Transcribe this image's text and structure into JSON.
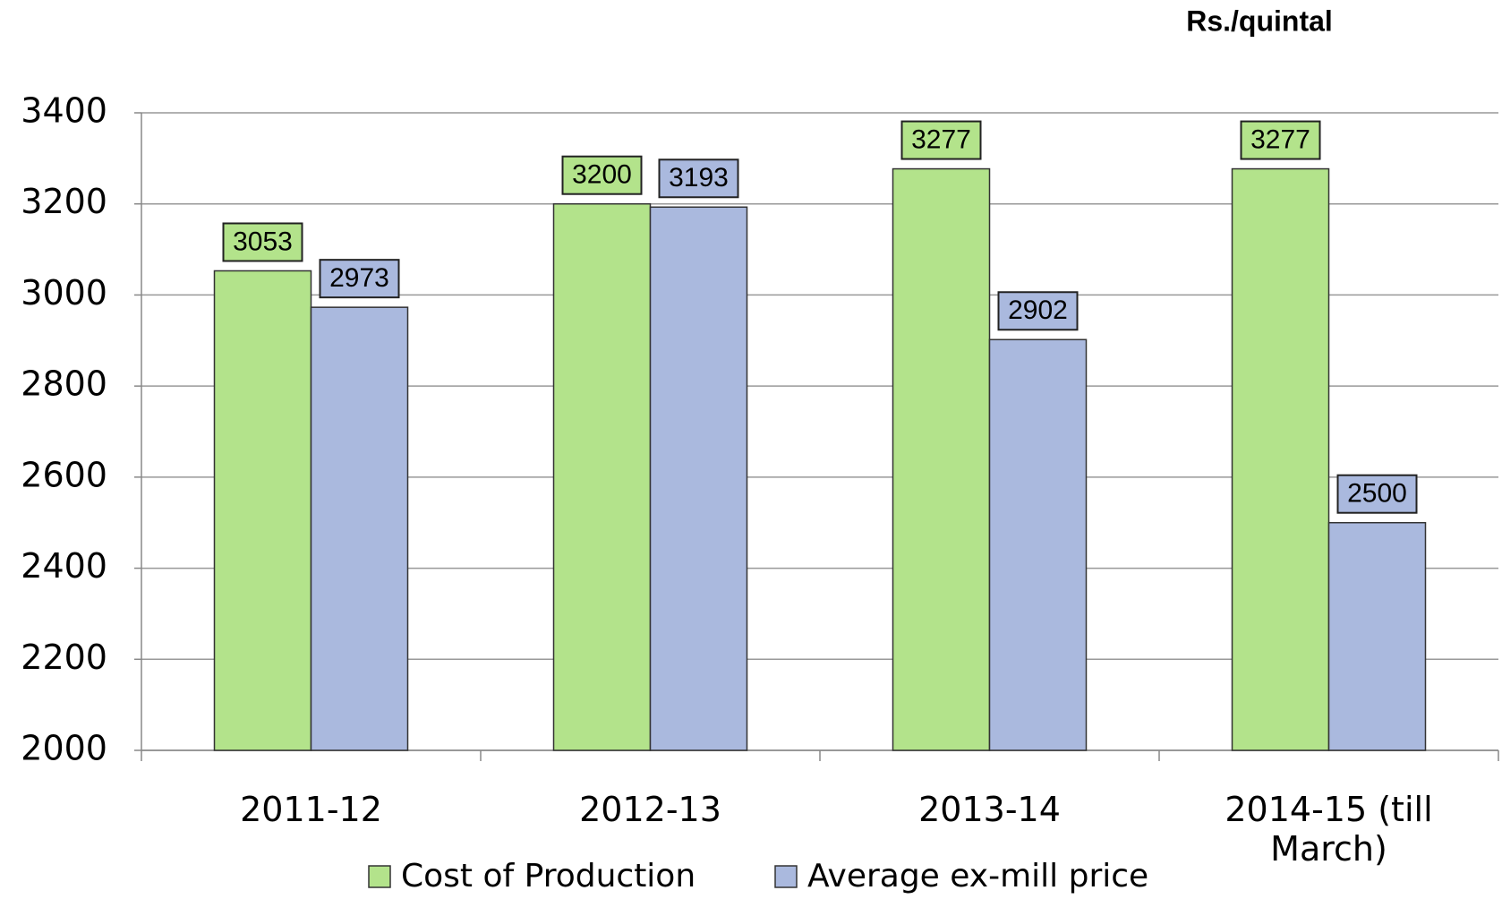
{
  "chart_data": {
    "type": "bar",
    "unit_label": "Rs./quintal",
    "categories": [
      "2011-12",
      "2012-13",
      "2013-14",
      "2014-15 (till March)"
    ],
    "series": [
      {
        "name": "Cost of Production",
        "color": "#b3e38b",
        "values": [
          3053,
          3200,
          3277,
          3277
        ]
      },
      {
        "name": "Average ex-mill price",
        "color": "#aab9de",
        "values": [
          2973,
          3193,
          2902,
          2500
        ]
      }
    ],
    "ylim": [
      2000,
      3400
    ],
    "yticks": [
      2000,
      2200,
      2400,
      2600,
      2800,
      3000,
      3200,
      3400
    ],
    "grid": true,
    "legend": "bottom"
  }
}
